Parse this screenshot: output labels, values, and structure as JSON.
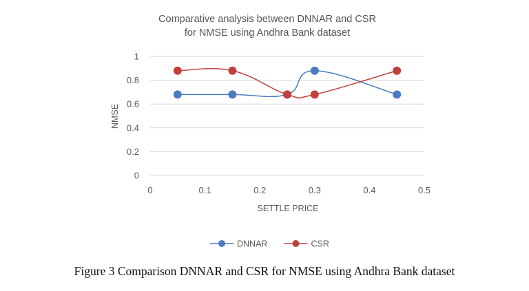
{
  "chart_data": {
    "type": "line",
    "title": [
      "Comparative  analysis between  DNNAR and  CSR",
      "for NMSE using Andhra  Bank dataset"
    ],
    "xlabel": "SETTLE PRICE",
    "ylabel": "NMSE",
    "xlim": [
      0,
      0.5
    ],
    "ylim": [
      0,
      1
    ],
    "x_ticks": [
      "0",
      "0.1",
      "0.2",
      "0.3",
      "0.4",
      "0.5"
    ],
    "y_ticks": [
      "0",
      "0.2",
      "0.4",
      "0.6",
      "0.8",
      "1"
    ],
    "x_tick_values": [
      0,
      0.1,
      0.2,
      0.3,
      0.4,
      0.5
    ],
    "y_tick_values": [
      0,
      0.2,
      0.4,
      0.6,
      0.8,
      1
    ],
    "grid": "horizontal",
    "legend_position": "bottom",
    "smooth": true,
    "series": [
      {
        "name": "DNNAR",
        "color": "#4a7bbf",
        "x": [
          0.05,
          0.15,
          0.25,
          0.3,
          0.45
        ],
        "y": [
          0.68,
          0.68,
          0.68,
          0.88,
          0.68
        ]
      },
      {
        "name": "CSR",
        "color": "#c0413c",
        "x": [
          0.05,
          0.15,
          0.25,
          0.3,
          0.45
        ],
        "y": [
          0.88,
          0.88,
          0.68,
          0.68,
          0.88
        ]
      }
    ]
  },
  "caption": "Figure 3 Comparison DNNAR and CSR for NMSE using Andhra Bank dataset"
}
